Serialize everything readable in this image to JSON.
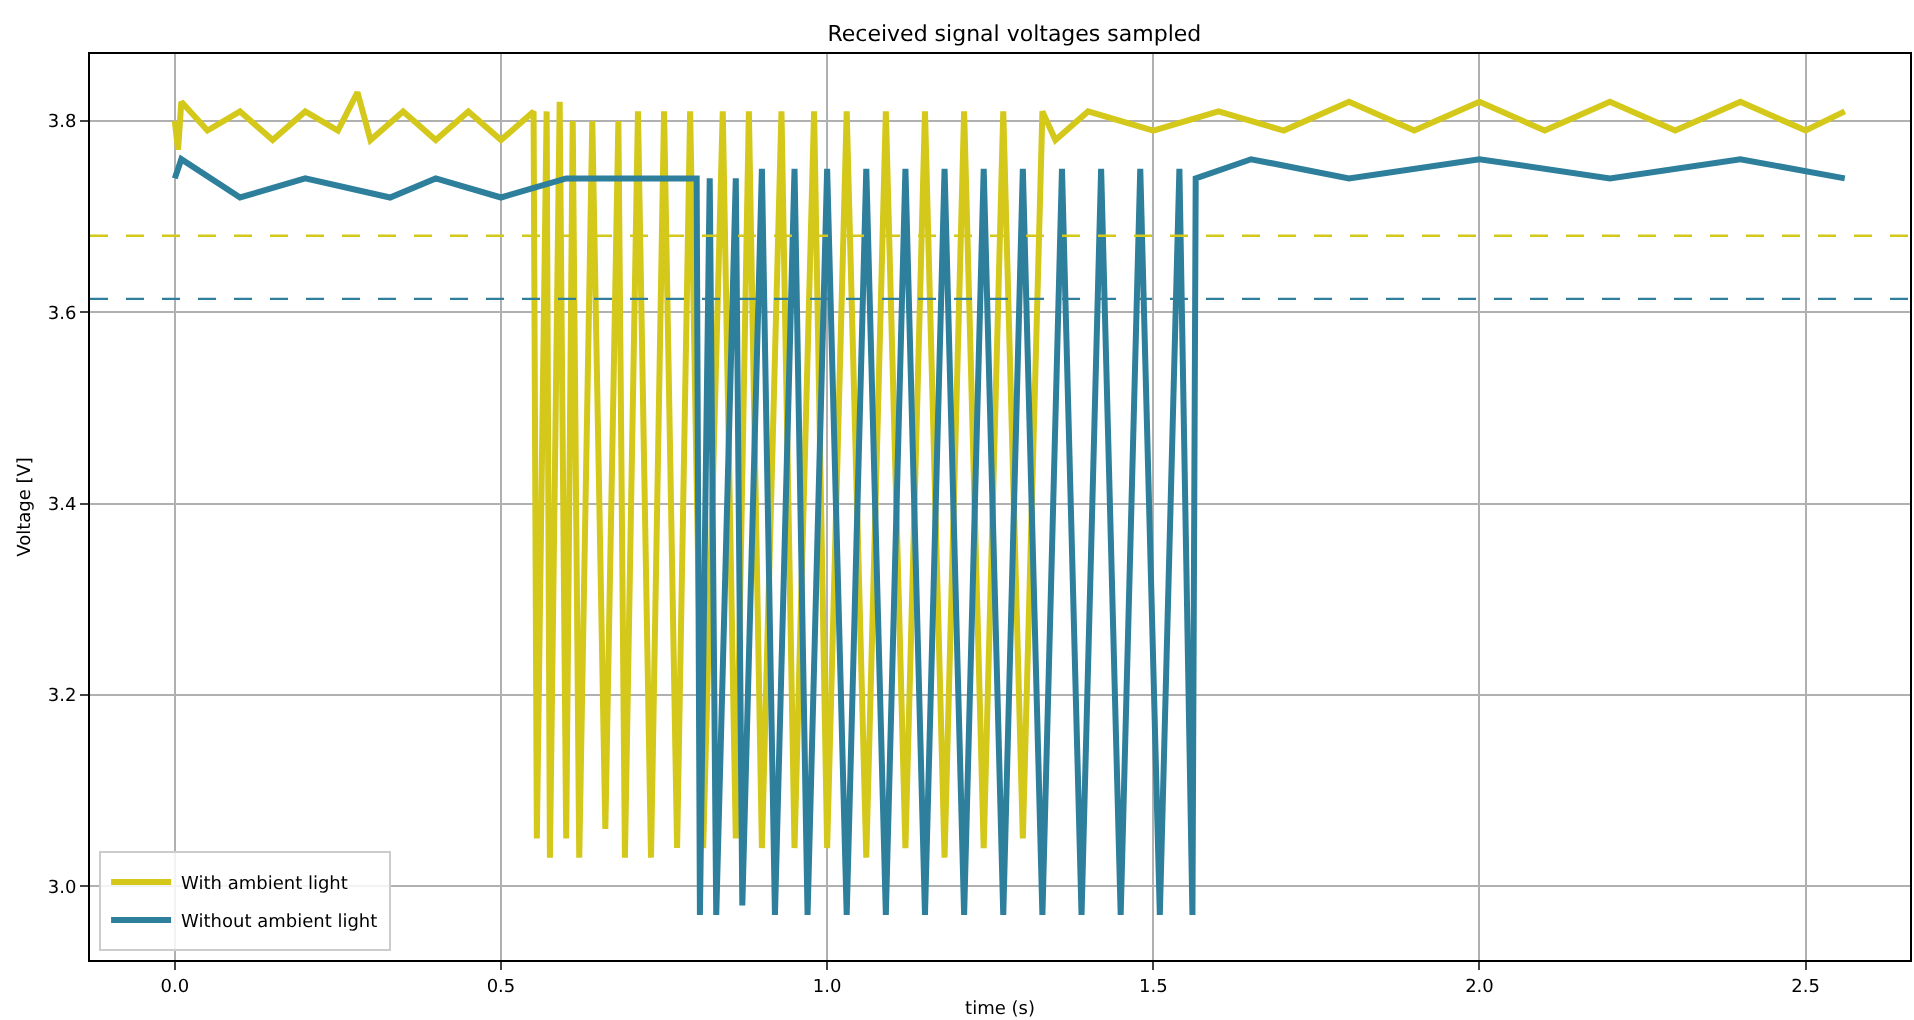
{
  "chart_data": {
    "type": "line",
    "title": "Received signal voltages sampled",
    "xlabel": "time (s)",
    "ylabel": "Voltage [V]",
    "xlim": [
      -0.13,
      2.66
    ],
    "ylim": [
      2.923,
      3.87
    ],
    "xticks": [
      {
        "value": 0,
        "label": "0.0"
      },
      {
        "value": 0.5,
        "label": "0.5"
      },
      {
        "value": 1,
        "label": "1.0"
      },
      {
        "value": 1.5,
        "label": "1.5"
      },
      {
        "value": 2,
        "label": "2.0"
      },
      {
        "value": 2.5,
        "label": "2.5"
      }
    ],
    "yticks": [
      {
        "value": 3,
        "label": "3.0"
      },
      {
        "value": 3.2,
        "label": "3.2"
      },
      {
        "value": 3.4,
        "label": "3.4"
      },
      {
        "value": 3.6,
        "label": "3.6"
      },
      {
        "value": 3.8,
        "label": "3.8"
      }
    ],
    "grid": true,
    "legend": "bottom left",
    "marker": "none",
    "line_style": "solid",
    "series": [
      {
        "name": "With ambient light",
        "color": "#d4c81a",
        "x": [
          0,
          0.005,
          0.01,
          0.05,
          0.1,
          0.15,
          0.2,
          0.25,
          0.28,
          0.3,
          0.35,
          0.4,
          0.45,
          0.5,
          0.55,
          0.555,
          0.57,
          0.575,
          0.59,
          0.6,
          0.61,
          0.62,
          0.64,
          0.66,
          0.68,
          0.69,
          0.71,
          0.73,
          0.75,
          0.77,
          0.79,
          0.81,
          0.84,
          0.86,
          0.88,
          0.9,
          0.93,
          0.95,
          0.98,
          1.0,
          1.03,
          1.06,
          1.09,
          1.12,
          1.15,
          1.18,
          1.21,
          1.24,
          1.27,
          1.3,
          1.33,
          1.35,
          1.4,
          1.5,
          1.6,
          1.7,
          1.8,
          1.9,
          2.0,
          2.1,
          2.2,
          2.3,
          2.4,
          2.5,
          2.56
        ],
        "values": [
          3.8,
          3.77,
          3.82,
          3.79,
          3.81,
          3.78,
          3.81,
          3.79,
          3.83,
          3.78,
          3.81,
          3.78,
          3.81,
          3.78,
          3.81,
          3.05,
          3.81,
          3.03,
          3.82,
          3.05,
          3.8,
          3.03,
          3.8,
          3.06,
          3.8,
          3.03,
          3.81,
          3.03,
          3.81,
          3.04,
          3.81,
          3.04,
          3.81,
          3.05,
          3.81,
          3.04,
          3.81,
          3.04,
          3.81,
          3.04,
          3.81,
          3.03,
          3.81,
          3.04,
          3.81,
          3.03,
          3.81,
          3.04,
          3.81,
          3.05,
          3.81,
          3.78,
          3.81,
          3.79,
          3.81,
          3.79,
          3.82,
          3.79,
          3.82,
          3.79,
          3.82,
          3.79,
          3.82,
          3.79,
          3.81
        ]
      },
      {
        "name": "Without ambient light",
        "color": "#2e7f9b",
        "x": [
          0,
          0.01,
          0.1,
          0.2,
          0.33,
          0.4,
          0.5,
          0.6,
          0.8,
          0.805,
          0.82,
          0.83,
          0.86,
          0.87,
          0.9,
          0.92,
          0.95,
          0.97,
          1.0,
          1.03,
          1.06,
          1.09,
          1.12,
          1.15,
          1.18,
          1.21,
          1.24,
          1.27,
          1.3,
          1.33,
          1.36,
          1.39,
          1.42,
          1.45,
          1.48,
          1.51,
          1.54,
          1.56,
          1.565,
          1.65,
          1.8,
          2.0,
          2.2,
          2.4,
          2.56
        ],
        "values": [
          3.74,
          3.76,
          3.72,
          3.74,
          3.72,
          3.74,
          3.72,
          3.74,
          3.74,
          2.97,
          3.74,
          2.97,
          3.74,
          2.98,
          3.75,
          2.97,
          3.75,
          2.97,
          3.75,
          2.97,
          3.75,
          2.97,
          3.75,
          2.97,
          3.75,
          2.97,
          3.75,
          2.97,
          3.75,
          2.97,
          3.75,
          2.97,
          3.75,
          2.97,
          3.75,
          2.97,
          3.75,
          2.97,
          3.74,
          3.76,
          3.74,
          3.76,
          3.74,
          3.76,
          3.74
        ]
      }
    ],
    "ref_lines": [
      {
        "axis": "y",
        "value": 3.68,
        "color": "#d4c81a",
        "line_style": "dashed"
      },
      {
        "axis": "y",
        "value": 3.614,
        "color": "#2e7f9b",
        "line_style": "dashed"
      }
    ]
  }
}
